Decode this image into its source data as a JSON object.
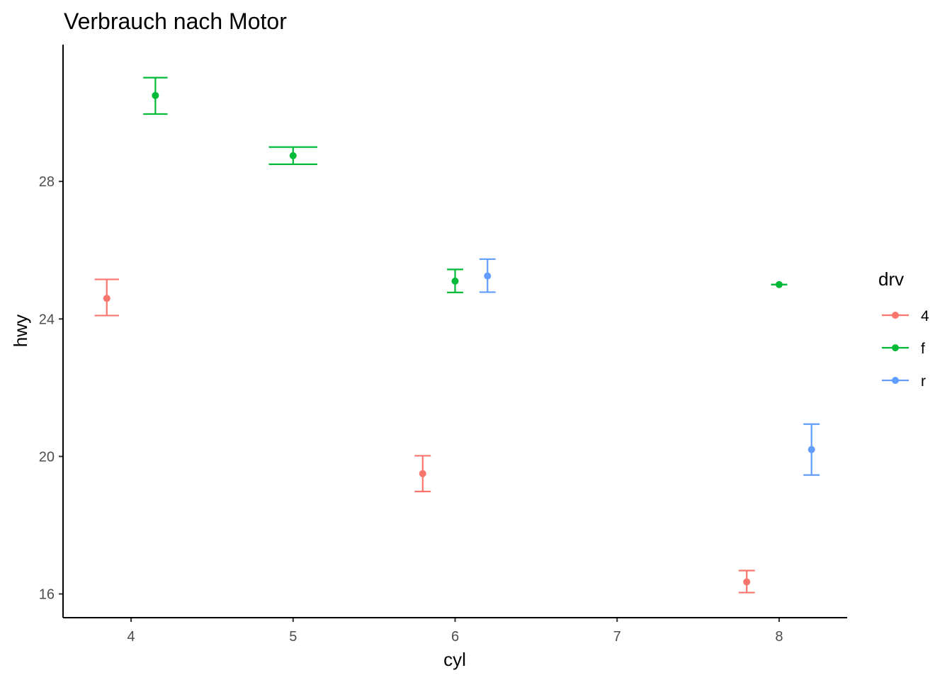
{
  "chart_data": {
    "type": "scatter",
    "title": "Verbrauch nach Motor",
    "xlabel": "cyl",
    "ylabel": "hwy",
    "xlim": [
      3.58,
      8.42
    ],
    "ylim": [
      15.31,
      31.98
    ],
    "x_ticks": [
      "4",
      "5",
      "6",
      "7",
      "8"
    ],
    "y_ticks": [
      "16",
      "20",
      "24",
      "28"
    ],
    "grid": false,
    "legend": {
      "title": "drv",
      "position": "right"
    },
    "series": [
      {
        "name": "4",
        "color": "#F8766D",
        "points": [
          {
            "x": 4,
            "y": 24.6,
            "ymin": 24.1,
            "ymax": 25.15
          },
          {
            "x": 6,
            "y": 19.5,
            "ymin": 18.98,
            "ymax": 20.02
          },
          {
            "x": 8,
            "y": 16.35,
            "ymin": 16.04,
            "ymax": 16.68
          }
        ]
      },
      {
        "name": "f",
        "color": "#00BA38",
        "points": [
          {
            "x": 4,
            "y": 30.5,
            "ymin": 29.96,
            "ymax": 31.02
          },
          {
            "x": 5,
            "y": 28.75,
            "ymin": 28.5,
            "ymax": 29.0
          },
          {
            "x": 6,
            "y": 25.1,
            "ymin": 24.77,
            "ymax": 25.44
          },
          {
            "x": 8,
            "y": 25.0,
            "ymin": 25.0,
            "ymax": 25.0
          }
        ]
      },
      {
        "name": "r",
        "color": "#619CFF",
        "points": [
          {
            "x": 6,
            "y": 25.25,
            "ymin": 24.78,
            "ymax": 25.74
          },
          {
            "x": 8,
            "y": 20.2,
            "ymin": 19.46,
            "ymax": 20.94
          }
        ]
      }
    ]
  }
}
